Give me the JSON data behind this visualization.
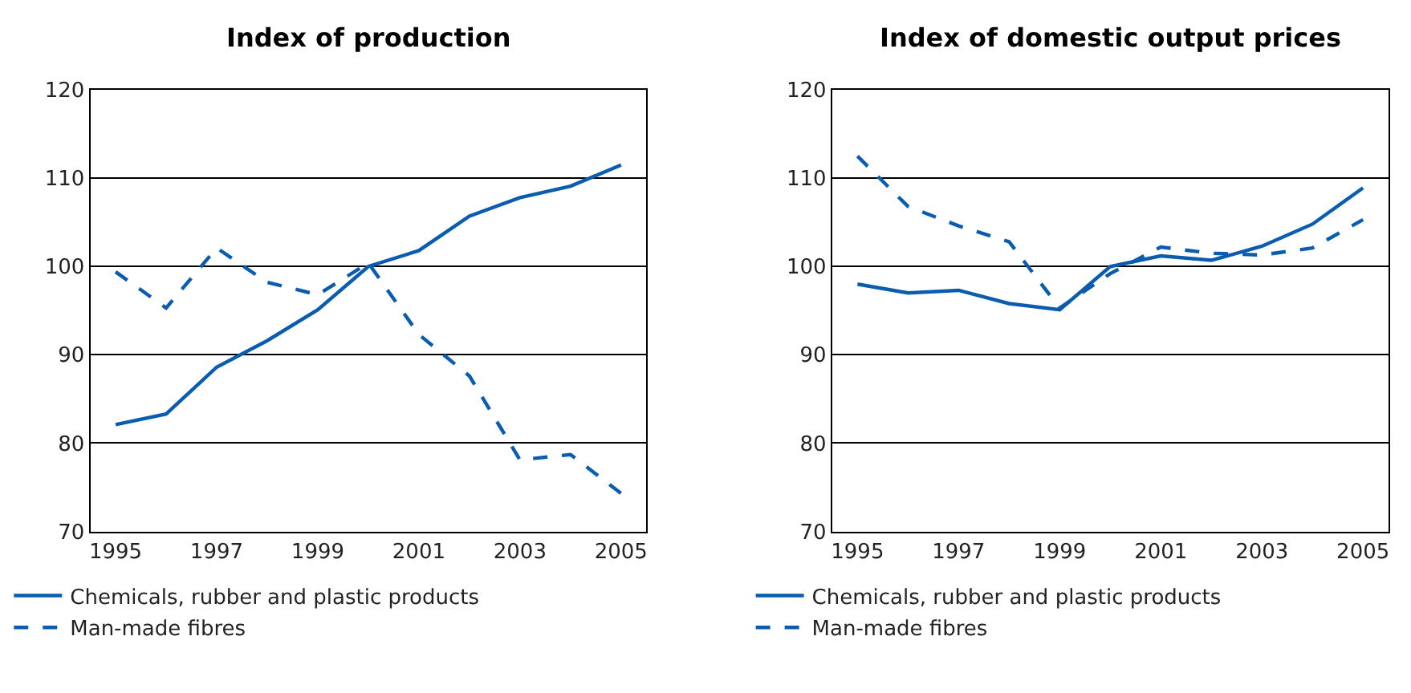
{
  "chart_data": [
    {
      "type": "line",
      "title": "Index of production",
      "x": [
        1995,
        1996,
        1997,
        1998,
        1999,
        2000,
        2001,
        2002,
        2003,
        2004,
        2005
      ],
      "series": [
        {
          "name": "Chemicals, rubber and plastic products",
          "color": "#0a5cb0",
          "line_style": "solid",
          "values": [
            82.1,
            83.3,
            88.6,
            91.6,
            95.1,
            100,
            101.8,
            105.7,
            107.8,
            109.1,
            111.5
          ]
        },
        {
          "name": "Man-made fibres",
          "color": "#0a5cb0",
          "line_style": "dashed",
          "values": [
            99.4,
            95.3,
            102.1,
            98.2,
            96.8,
            100.4,
            92.3,
            87.6,
            78.1,
            78.7,
            74.3
          ]
        }
      ],
      "xlim": [
        1994.5,
        2005.5
      ],
      "xticks": [
        1995,
        1997,
        1999,
        2001,
        2003,
        2005
      ],
      "ylim": [
        70,
        120
      ],
      "yticks": [
        70,
        80,
        90,
        100,
        110,
        120
      ],
      "grid": "y",
      "legend": "bottom",
      "marker": "none"
    },
    {
      "type": "line",
      "title": "Index of domestic output prices",
      "x": [
        1995,
        1996,
        1997,
        1998,
        1999,
        2000,
        2001,
        2002,
        2003,
        2004,
        2005
      ],
      "series": [
        {
          "name": "Chemicals, rubber and plastic products",
          "color": "#0a5cb0",
          "line_style": "solid",
          "values": [
            98.0,
            97.0,
            97.3,
            95.8,
            95.1,
            100,
            101.2,
            100.7,
            102.3,
            104.8,
            108.9
          ]
        },
        {
          "name": "Man-made fibres",
          "color": "#0a5cb0",
          "line_style": "dashed",
          "values": [
            112.5,
            106.8,
            104.6,
            102.8,
            95.3,
            99.2,
            102.2,
            101.5,
            101.3,
            102.1,
            105.3
          ]
        }
      ],
      "xlim": [
        1994.5,
        2005.5
      ],
      "xticks": [
        1995,
        1997,
        1999,
        2001,
        2003,
        2005
      ],
      "ylim": [
        70,
        120
      ],
      "yticks": [
        70,
        80,
        90,
        100,
        110,
        120
      ],
      "grid": "y",
      "legend": "bottom",
      "marker": "none"
    }
  ]
}
